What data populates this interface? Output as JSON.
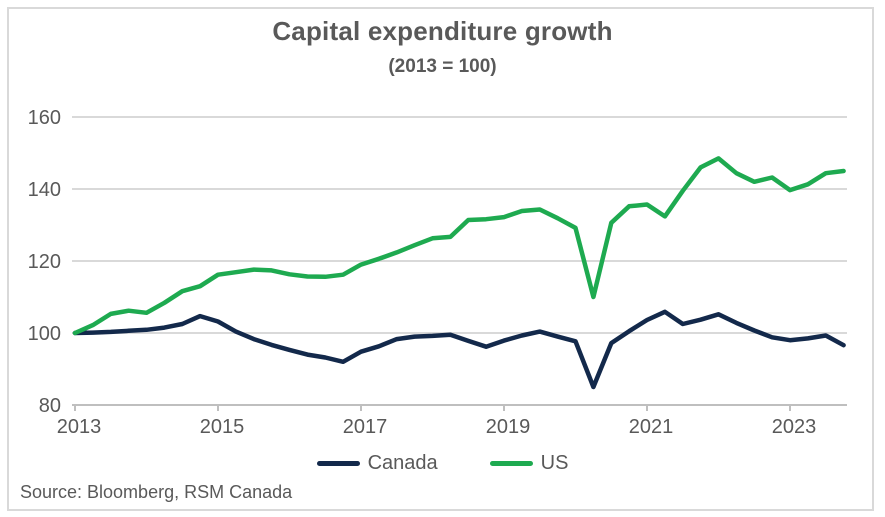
{
  "figure": {
    "title": "Capital expenditure growth",
    "subtitle": "(2013 = 100)",
    "source": "Source: Bloomberg, RSM Canada"
  },
  "legend": {
    "items": [
      {
        "label": "Canada",
        "color": "#13294B"
      },
      {
        "label": "US",
        "color": "#1EAA50"
      }
    ]
  },
  "colors": {
    "canada_line": "#13294B",
    "us_line": "#1EAA50",
    "text_gray": "#595959",
    "gridline": "#D9D9D9",
    "axis": "#BFBFBF",
    "background": "#FFFFFF"
  },
  "chart_data": {
    "type": "line",
    "title": "Capital expenditure growth",
    "subtitle": "(2013 = 100)",
    "x_frequency": "quarterly",
    "x_start": 2013.0,
    "x_step": 0.25,
    "x_end": 2023.75,
    "ylim": [
      80,
      160
    ],
    "yticks": [
      80,
      100,
      120,
      140,
      160
    ],
    "xticks": [
      2013,
      2015,
      2017,
      2019,
      2021,
      2023
    ],
    "grid": "horizontal",
    "legend_position": "bottom",
    "source": "Source: Bloomberg, RSM Canada",
    "series": [
      {
        "name": "Canada",
        "color": "#13294B",
        "values": [
          100,
          100.1,
          100.3,
          100.6,
          100.9,
          101.5,
          102.5,
          104.7,
          103.2,
          100.4,
          98.3,
          96.7,
          95.3,
          94.0,
          93.2,
          92.0,
          94.8,
          96.3,
          98.3,
          99.0,
          99.2,
          99.5,
          97.8,
          96.2,
          97.9,
          99.3,
          100.4,
          99.0,
          97.7,
          85.0,
          97.2,
          100.5,
          103.6,
          105.9,
          102.5,
          103.7,
          105.2,
          102.8,
          100.7,
          98.8,
          98.0,
          98.5,
          99.3,
          96.6
        ]
      },
      {
        "name": "US",
        "color": "#1EAA50",
        "values": [
          100,
          102.2,
          105.3,
          106.2,
          105.6,
          108.4,
          111.6,
          113.0,
          116.2,
          116.9,
          117.6,
          117.4,
          116.3,
          115.7,
          115.6,
          116.2,
          119.0,
          120.6,
          122.4,
          124.4,
          126.3,
          126.7,
          131.4,
          131.6,
          132.2,
          133.9,
          134.3,
          131.9,
          129.2,
          110.0,
          130.6,
          135.2,
          135.7,
          132.4,
          139.5,
          146.0,
          148.5,
          144.4,
          142.0,
          143.2,
          139.7,
          141.3,
          144.4,
          145.0
        ]
      }
    ]
  }
}
